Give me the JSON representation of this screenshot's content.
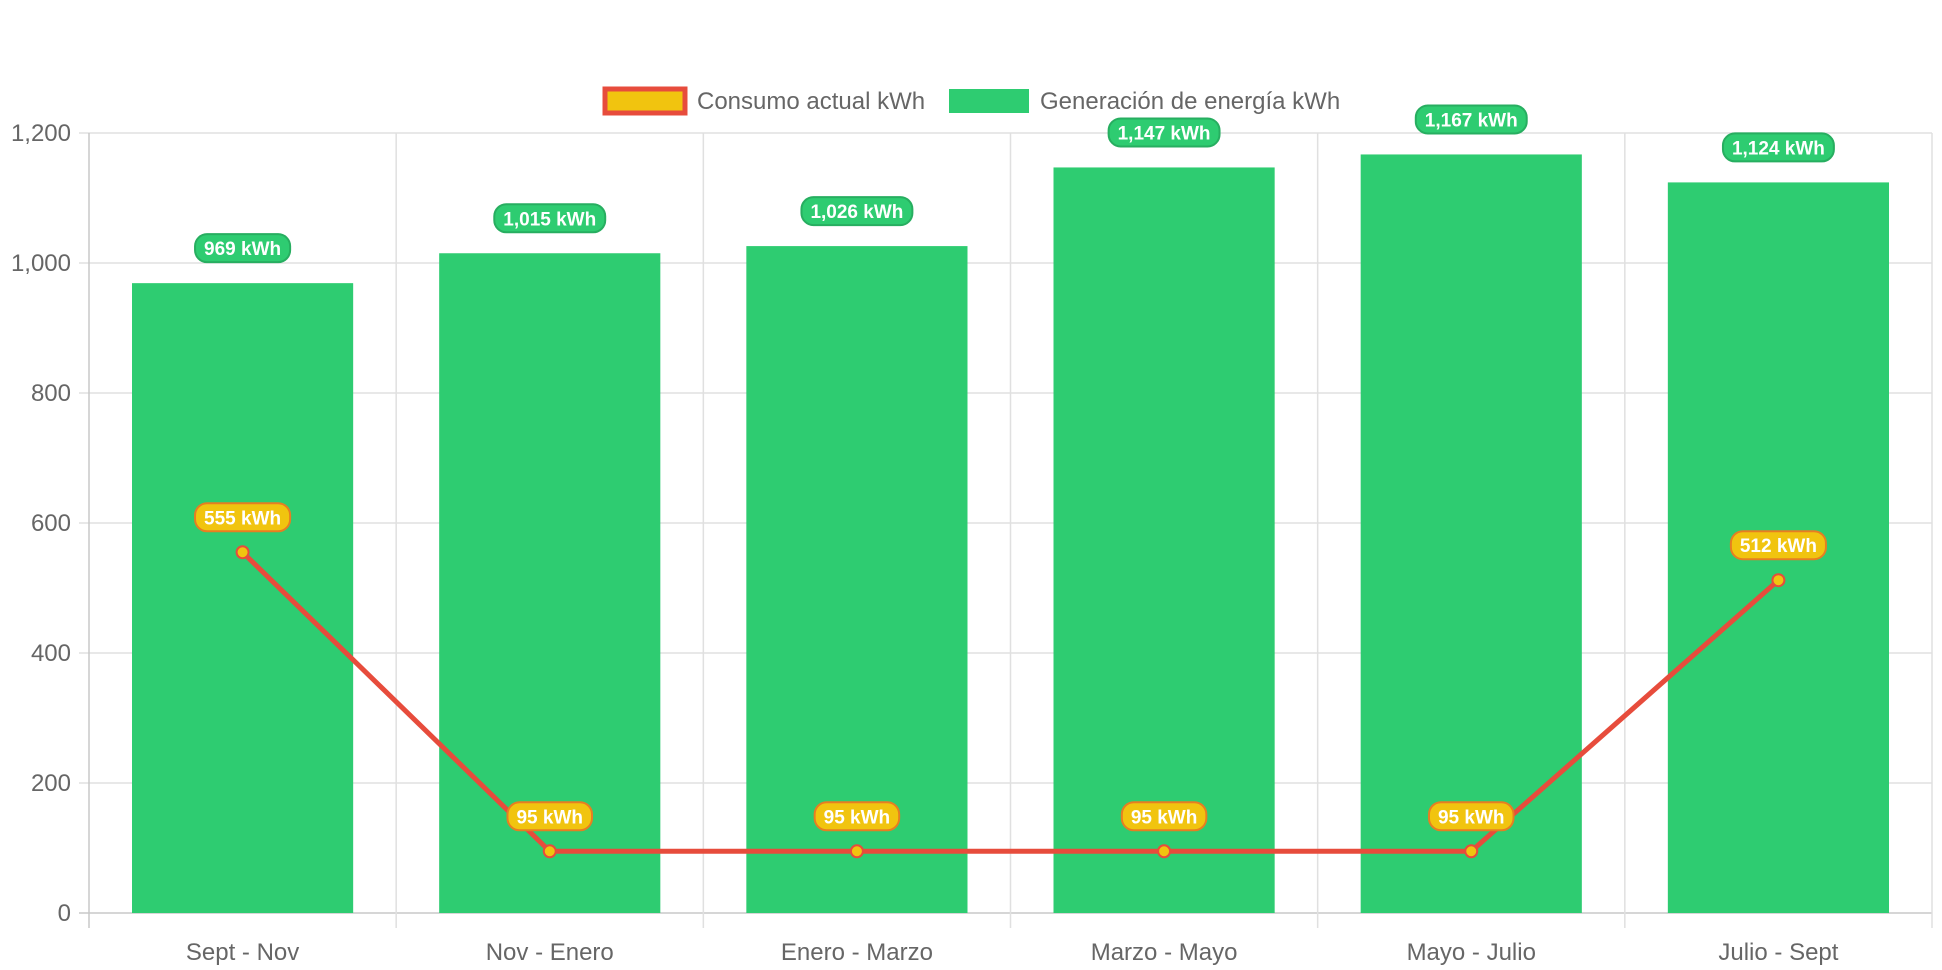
{
  "chart_data": {
    "type": "bar",
    "categories": [
      "Sept - Nov",
      "Nov - Enero",
      "Enero - Marzo",
      "Marzo - Mayo",
      "Mayo - Julio",
      "Julio - Sept"
    ],
    "series": [
      {
        "name": "Consumo actual kWh",
        "type": "line",
        "values": [
          555,
          95,
          95,
          95,
          95,
          512
        ],
        "labels": [
          "555 kWh",
          "95 kWh",
          "95 kWh",
          "95 kWh",
          "95 kWh",
          "512 kWh"
        ],
        "line_color": "#e74c3c",
        "fill_color": "#f1c40f",
        "label_border_color": "#e67e22"
      },
      {
        "name": "Generación de energía kWh",
        "type": "bar",
        "values": [
          969,
          1015,
          1026,
          1147,
          1167,
          1124
        ],
        "labels": [
          "969 kWh",
          "1,015 kWh",
          "1,026 kWh",
          "1,147 kWh",
          "1,167 kWh",
          "1,124 kWh"
        ],
        "fill_color": "#2ecc71",
        "label_border_color": "#27ae60"
      }
    ],
    "yticks": [
      "0",
      "200",
      "400",
      "600",
      "800",
      "1,000",
      "1,200"
    ],
    "ylim": [
      0,
      1200
    ],
    "title": "",
    "xlabel": "",
    "ylabel": "",
    "grid": true,
    "legend_position": "top-center"
  }
}
